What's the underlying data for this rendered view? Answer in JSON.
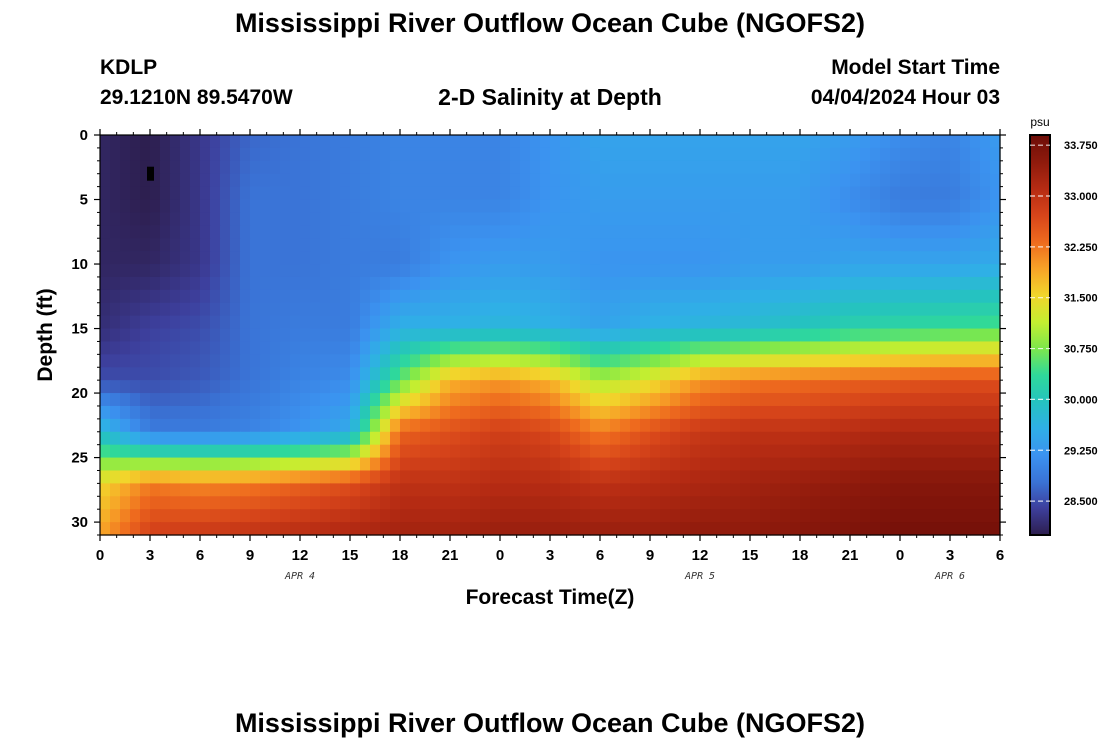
{
  "header": {
    "title": "Mississippi River Outflow Ocean Cube (NGOFS2)",
    "station": "KDLP",
    "coordinates": "29.1210N  89.5470W",
    "subtitle": "2-D Salinity at Depth",
    "model_start_label": "Model Start Time",
    "model_start_time": "04/04/2024 Hour 03"
  },
  "footer": {
    "title": "Mississippi River Outflow Ocean Cube (NGOFS2)"
  },
  "chart_data": {
    "type": "heatmap",
    "title": "2-D Salinity at Depth",
    "xlabel": "Forecast Time(Z)",
    "ylabel": "Depth (ft)",
    "x_range_hours": [
      0,
      54
    ],
    "x_tick_labels": [
      "0",
      "3",
      "6",
      "9",
      "12",
      "15",
      "18",
      "21",
      "0",
      "3",
      "6",
      "9",
      "12",
      "15",
      "18",
      "21",
      "0",
      "3",
      "6"
    ],
    "date_labels": [
      {
        "hour": 12,
        "label": "APR 4"
      },
      {
        "hour": 36,
        "label": "APR 5"
      },
      {
        "hour": 51,
        "label": "APR 6"
      }
    ],
    "y_range_ft": [
      0,
      31
    ],
    "y_tick_labels": [
      "0",
      "5",
      "10",
      "15",
      "20",
      "25",
      "30"
    ],
    "y_reversed": true,
    "colorbar": {
      "unit": "psu",
      "range": [
        28.0,
        33.9
      ],
      "tick_labels": [
        "33.750",
        "33.000",
        "32.250",
        "31.500",
        "30.750",
        "30.000",
        "29.250",
        "28.500"
      ],
      "colors": [
        "#2d1e4e",
        "#3d3f9c",
        "#3a73d6",
        "#3b93f0",
        "#2fb0e6",
        "#25c3bf",
        "#2fd99a",
        "#7ee84b",
        "#c4ee30",
        "#f2d52b",
        "#f7a227",
        "#ee6a1e",
        "#d6441a",
        "#b52b13",
        "#8e1a0c",
        "#6d0d08"
      ]
    },
    "salinity_profiles": [
      {
        "hour": 0,
        "s": [
          28.1,
          28.1,
          28.1,
          28.2,
          28.5,
          29.8,
          31.5,
          31.9
        ]
      },
      {
        "hour": 3,
        "s": [
          28.0,
          28.0,
          28.1,
          28.4,
          28.5,
          28.9,
          32.2,
          32.8
        ]
      },
      {
        "hour": 6,
        "s": [
          28.3,
          28.3,
          28.3,
          28.5,
          28.6,
          28.9,
          32.1,
          32.9
        ]
      },
      {
        "hour": 9,
        "s": [
          28.7,
          28.8,
          28.8,
          28.8,
          28.8,
          29.0,
          32.2,
          33.0
        ]
      },
      {
        "hour": 12,
        "s": [
          28.8,
          28.8,
          28.8,
          28.9,
          29.0,
          29.2,
          32.4,
          33.1
        ]
      },
      {
        "hour": 15,
        "s": [
          28.9,
          28.9,
          28.9,
          28.9,
          29.1,
          29.5,
          32.6,
          33.2
        ]
      },
      {
        "hour": 18,
        "s": [
          29.0,
          29.0,
          28.9,
          29.6,
          30.6,
          32.4,
          33.0,
          33.3
        ]
      },
      {
        "hour": 21,
        "s": [
          29.0,
          29.0,
          29.2,
          29.6,
          31.8,
          32.6,
          33.0,
          33.3
        ]
      },
      {
        "hour": 24,
        "s": [
          29.0,
          29.0,
          29.3,
          29.7,
          32.0,
          32.8,
          33.1,
          33.4
        ]
      },
      {
        "hour": 27,
        "s": [
          29.2,
          29.2,
          29.3,
          29.6,
          31.8,
          32.7,
          33.1,
          33.4
        ]
      },
      {
        "hour": 30,
        "s": [
          29.4,
          29.3,
          29.2,
          29.4,
          31.0,
          32.2,
          33.0,
          33.4
        ]
      },
      {
        "hour": 33,
        "s": [
          29.4,
          29.3,
          29.2,
          29.6,
          31.4,
          32.6,
          33.1,
          33.4
        ]
      },
      {
        "hour": 36,
        "s": [
          29.4,
          29.3,
          29.2,
          29.7,
          32.0,
          32.9,
          33.2,
          33.5
        ]
      },
      {
        "hour": 39,
        "s": [
          29.4,
          29.3,
          29.3,
          29.8,
          32.2,
          33.0,
          33.3,
          33.5
        ]
      },
      {
        "hour": 42,
        "s": [
          29.4,
          29.3,
          29.3,
          30.0,
          32.3,
          33.0,
          33.4,
          33.6
        ]
      },
      {
        "hour": 45,
        "s": [
          29.3,
          29.1,
          29.4,
          30.2,
          32.4,
          33.1,
          33.5,
          33.7
        ]
      },
      {
        "hour": 48,
        "s": [
          29.1,
          28.9,
          29.4,
          30.3,
          32.5,
          33.2,
          33.6,
          33.8
        ]
      },
      {
        "hour": 51,
        "s": [
          29.0,
          28.9,
          29.4,
          30.4,
          32.6,
          33.2,
          33.6,
          33.8
        ]
      },
      {
        "hour": 54,
        "s": [
          29.3,
          29.2,
          29.5,
          30.5,
          32.6,
          33.2,
          33.6,
          33.8
        ]
      }
    ],
    "profile_depths_ft": [
      0,
      5,
      10,
      15,
      19,
      23,
      27,
      31
    ],
    "station_marker": {
      "hour": 3,
      "depth_ft": 3
    }
  }
}
